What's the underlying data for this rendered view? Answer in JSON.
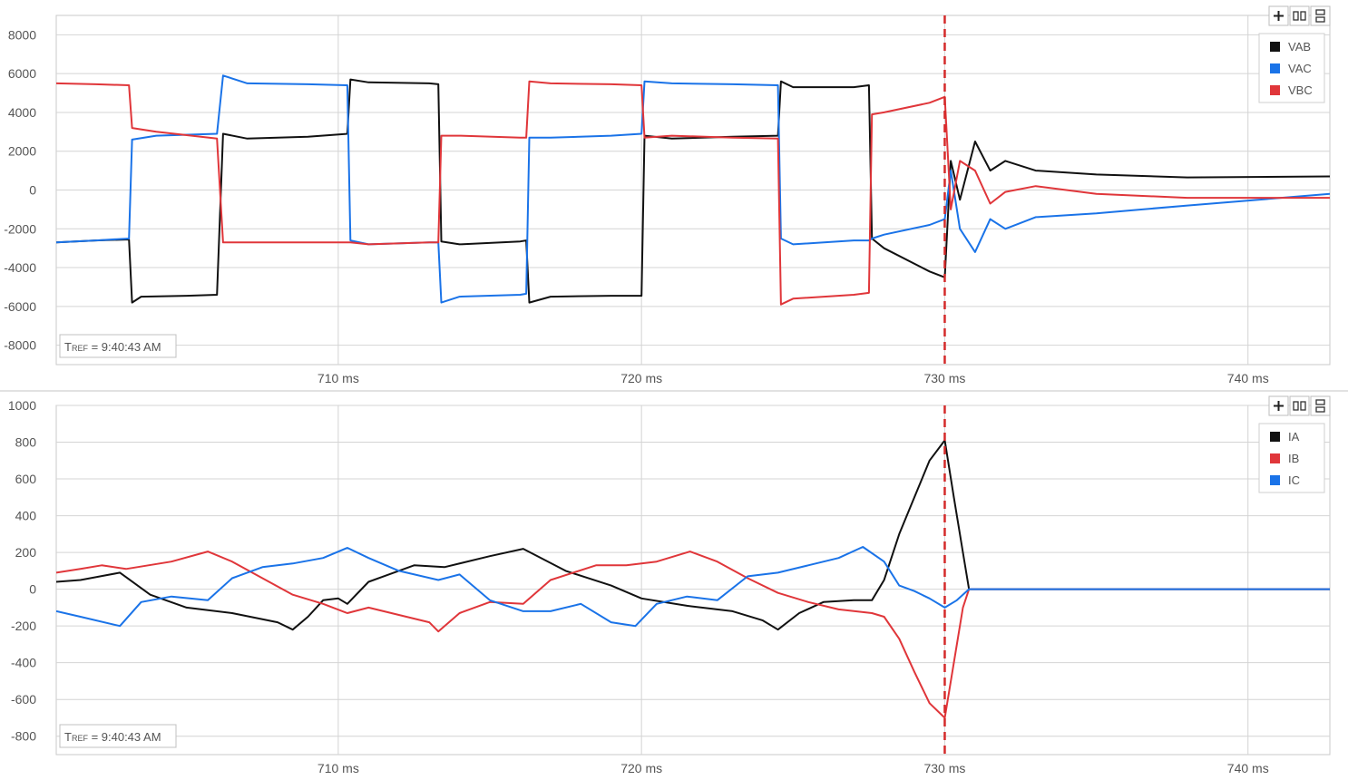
{
  "colors": {
    "black": "#111111",
    "blue": "#1a73e8",
    "red": "#e0363a",
    "grid": "#d4d4d4",
    "cursor": "#d42a2a"
  },
  "toolbar": {
    "add_icon": "plus-icon",
    "columns_icon": "columns-icon",
    "rows_icon": "rows-icon"
  },
  "chart_data": [
    {
      "type": "line",
      "x_unit": "ms",
      "x_range": [
        700.7,
        742.7
      ],
      "x_ticks": [
        710,
        720,
        730,
        740
      ],
      "x_tick_labels": [
        "710 ms",
        "720 ms",
        "730 ms",
        "740 ms"
      ],
      "y_range": [
        -9000,
        9000
      ],
      "y_ticks": [
        8000,
        6000,
        4000,
        2000,
        0,
        -2000,
        -4000,
        -6000,
        -8000
      ],
      "grid": true,
      "legend_position": "top-right",
      "cursor_x": 730,
      "annotation": "TREF = 9:40:43 AM",
      "annotation_parts": {
        "t": "T",
        "ref": "REF",
        "rest": " = 9:40:43 AM"
      },
      "series": [
        {
          "name": "VAB",
          "color": "#111111",
          "points": [
            [
              700.7,
              -2700
            ],
            [
              702.0,
              -2600
            ],
            [
              703.1,
              -2550
            ],
            [
              703.2,
              -5800
            ],
            [
              703.5,
              -5500
            ],
            [
              705.0,
              -5450
            ],
            [
              706.0,
              -5400
            ],
            [
              706.2,
              2900
            ],
            [
              707.0,
              2650
            ],
            [
              709.0,
              2750
            ],
            [
              710.3,
              2900
            ],
            [
              710.4,
              5700
            ],
            [
              711.0,
              5550
            ],
            [
              713.0,
              5500
            ],
            [
              713.3,
              5450
            ],
            [
              713.4,
              -2650
            ],
            [
              714.0,
              -2800
            ],
            [
              716.0,
              -2650
            ],
            [
              716.2,
              -2600
            ],
            [
              716.3,
              -5800
            ],
            [
              717.0,
              -5500
            ],
            [
              719.0,
              -5450
            ],
            [
              720.0,
              -5450
            ],
            [
              720.1,
              2800
            ],
            [
              721.0,
              2650
            ],
            [
              723.0,
              2750
            ],
            [
              724.5,
              2800
            ],
            [
              724.6,
              5600
            ],
            [
              725.0,
              5300
            ],
            [
              727.0,
              5300
            ],
            [
              727.5,
              5400
            ],
            [
              727.6,
              -2500
            ],
            [
              728.0,
              -3000
            ],
            [
              729.5,
              -4200
            ],
            [
              730.0,
              -4500
            ],
            [
              730.2,
              1500
            ],
            [
              730.5,
              -500
            ],
            [
              731.0,
              2500
            ],
            [
              731.5,
              1000
            ],
            [
              732.0,
              1500
            ],
            [
              733.0,
              1000
            ],
            [
              735.0,
              800
            ],
            [
              738.0,
              650
            ],
            [
              742.7,
              700
            ]
          ]
        },
        {
          "name": "VAC",
          "color": "#1a73e8",
          "points": [
            [
              700.7,
              -2700
            ],
            [
              702.0,
              -2600
            ],
            [
              703.1,
              -2500
            ],
            [
              703.2,
              2600
            ],
            [
              704.0,
              2800
            ],
            [
              706.0,
              2900
            ],
            [
              706.2,
              5900
            ],
            [
              707.0,
              5500
            ],
            [
              709.0,
              5450
            ],
            [
              710.3,
              5400
            ],
            [
              710.4,
              -2600
            ],
            [
              711.0,
              -2800
            ],
            [
              713.0,
              -2700
            ],
            [
              713.3,
              -2700
            ],
            [
              713.4,
              -5800
            ],
            [
              714.0,
              -5500
            ],
            [
              716.0,
              -5400
            ],
            [
              716.2,
              -5350
            ],
            [
              716.3,
              2700
            ],
            [
              717.0,
              2700
            ],
            [
              719.0,
              2800
            ],
            [
              720.0,
              2900
            ],
            [
              720.1,
              5600
            ],
            [
              721.0,
              5500
            ],
            [
              723.0,
              5450
            ],
            [
              724.5,
              5400
            ],
            [
              724.6,
              -2500
            ],
            [
              725.0,
              -2800
            ],
            [
              727.0,
              -2600
            ],
            [
              727.5,
              -2600
            ],
            [
              727.6,
              -2500
            ],
            [
              728.0,
              -2300
            ],
            [
              729.5,
              -1800
            ],
            [
              730.0,
              -1500
            ],
            [
              730.2,
              1000
            ],
            [
              730.5,
              -2000
            ],
            [
              731.0,
              -3200
            ],
            [
              731.5,
              -1500
            ],
            [
              732.0,
              -2000
            ],
            [
              733.0,
              -1400
            ],
            [
              735.0,
              -1200
            ],
            [
              738.0,
              -800
            ],
            [
              742.7,
              -200
            ]
          ]
        },
        {
          "name": "VBC",
          "color": "#e0363a",
          "points": [
            [
              700.7,
              5500
            ],
            [
              702.0,
              5450
            ],
            [
              703.1,
              5400
            ],
            [
              703.2,
              3200
            ],
            [
              704.0,
              3000
            ],
            [
              706.0,
              2650
            ],
            [
              706.2,
              -2700
            ],
            [
              707.0,
              -2700
            ],
            [
              709.0,
              -2700
            ],
            [
              710.3,
              -2700
            ],
            [
              710.4,
              -2700
            ],
            [
              711.0,
              -2800
            ],
            [
              713.0,
              -2700
            ],
            [
              713.3,
              -2700
            ],
            [
              713.4,
              2800
            ],
            [
              714.0,
              2800
            ],
            [
              716.0,
              2700
            ],
            [
              716.2,
              2700
            ],
            [
              716.3,
              5600
            ],
            [
              717.0,
              5500
            ],
            [
              719.0,
              5450
            ],
            [
              720.0,
              5400
            ],
            [
              720.1,
              2700
            ],
            [
              721.0,
              2800
            ],
            [
              723.0,
              2700
            ],
            [
              724.5,
              2650
            ],
            [
              724.6,
              -5900
            ],
            [
              725.0,
              -5600
            ],
            [
              727.0,
              -5400
            ],
            [
              727.5,
              -5300
            ],
            [
              727.6,
              3900
            ],
            [
              728.0,
              4000
            ],
            [
              729.5,
              4500
            ],
            [
              730.0,
              4800
            ],
            [
              730.2,
              -1000
            ],
            [
              730.5,
              1500
            ],
            [
              731.0,
              1000
            ],
            [
              731.5,
              -700
            ],
            [
              732.0,
              -100
            ],
            [
              733.0,
              200
            ],
            [
              735.0,
              -200
            ],
            [
              738.0,
              -400
            ],
            [
              742.7,
              -400
            ]
          ]
        }
      ]
    },
    {
      "type": "line",
      "x_unit": "ms",
      "x_range": [
        700.7,
        742.7
      ],
      "x_ticks": [
        710,
        720,
        730,
        740
      ],
      "x_tick_labels": [
        "710 ms",
        "720 ms",
        "730 ms",
        "740 ms"
      ],
      "y_range": [
        -900,
        1000
      ],
      "y_ticks": [
        1000,
        800,
        600,
        400,
        200,
        0,
        -200,
        -400,
        -600,
        -800
      ],
      "grid": true,
      "legend_position": "top-right",
      "cursor_x": 730,
      "annotation": "TREF = 9:40:43 AM",
      "annotation_parts": {
        "t": "T",
        "ref": "REF",
        "rest": " = 9:40:43 AM"
      },
      "series": [
        {
          "name": "IA",
          "color": "#111111",
          "points": [
            [
              700.7,
              40
            ],
            [
              701.5,
              50
            ],
            [
              702.8,
              90
            ],
            [
              703.8,
              -30
            ],
            [
              705.0,
              -100
            ],
            [
              706.5,
              -130
            ],
            [
              708.0,
              -180
            ],
            [
              708.5,
              -220
            ],
            [
              709.0,
              -150
            ],
            [
              709.5,
              -60
            ],
            [
              710.0,
              -50
            ],
            [
              710.3,
              -80
            ],
            [
              711.0,
              40
            ],
            [
              712.5,
              130
            ],
            [
              713.5,
              120
            ],
            [
              715.0,
              180
            ],
            [
              716.1,
              220
            ],
            [
              717.5,
              100
            ],
            [
              719.0,
              20
            ],
            [
              720.0,
              -50
            ],
            [
              721.5,
              -90
            ],
            [
              723.0,
              -120
            ],
            [
              724.0,
              -170
            ],
            [
              724.5,
              -220
            ],
            [
              725.2,
              -130
            ],
            [
              726.0,
              -70
            ],
            [
              727.0,
              -60
            ],
            [
              727.6,
              -60
            ],
            [
              728.0,
              50
            ],
            [
              728.5,
              300
            ],
            [
              729.0,
              500
            ],
            [
              729.5,
              700
            ],
            [
              730.0,
              810
            ],
            [
              730.3,
              500
            ],
            [
              730.6,
              200
            ],
            [
              730.8,
              0
            ],
            [
              742.7,
              0
            ]
          ]
        },
        {
          "name": "IB",
          "color": "#e0363a",
          "points": [
            [
              700.7,
              90
            ],
            [
              701.5,
              110
            ],
            [
              702.2,
              130
            ],
            [
              703.0,
              110
            ],
            [
              704.5,
              150
            ],
            [
              705.7,
              205
            ],
            [
              706.5,
              150
            ],
            [
              707.5,
              60
            ],
            [
              708.5,
              -30
            ],
            [
              709.5,
              -80
            ],
            [
              710.3,
              -130
            ],
            [
              711.0,
              -100
            ],
            [
              712.0,
              -140
            ],
            [
              713.0,
              -180
            ],
            [
              713.3,
              -230
            ],
            [
              714.0,
              -130
            ],
            [
              715.0,
              -70
            ],
            [
              716.1,
              -80
            ],
            [
              717.0,
              50
            ],
            [
              718.5,
              130
            ],
            [
              719.5,
              130
            ],
            [
              720.5,
              150
            ],
            [
              721.6,
              205
            ],
            [
              722.5,
              150
            ],
            [
              723.5,
              60
            ],
            [
              724.5,
              -20
            ],
            [
              725.5,
              -70
            ],
            [
              726.5,
              -110
            ],
            [
              727.6,
              -130
            ],
            [
              728.0,
              -150
            ],
            [
              728.5,
              -270
            ],
            [
              729.0,
              -450
            ],
            [
              729.5,
              -620
            ],
            [
              730.0,
              -700
            ],
            [
              730.3,
              -400
            ],
            [
              730.6,
              -100
            ],
            [
              730.8,
              0
            ],
            [
              742.7,
              0
            ]
          ]
        },
        {
          "name": "IC",
          "color": "#1a73e8",
          "points": [
            [
              700.7,
              -120
            ],
            [
              701.5,
              -150
            ],
            [
              702.8,
              -200
            ],
            [
              703.5,
              -70
            ],
            [
              704.5,
              -40
            ],
            [
              705.7,
              -60
            ],
            [
              706.5,
              60
            ],
            [
              707.5,
              120
            ],
            [
              708.5,
              140
            ],
            [
              709.5,
              170
            ],
            [
              710.3,
              225
            ],
            [
              711.0,
              170
            ],
            [
              712.0,
              100
            ],
            [
              713.3,
              50
            ],
            [
              714.0,
              80
            ],
            [
              715.0,
              -60
            ],
            [
              716.1,
              -120
            ],
            [
              717.0,
              -120
            ],
            [
              718.0,
              -80
            ],
            [
              719.0,
              -180
            ],
            [
              719.8,
              -200
            ],
            [
              720.5,
              -80
            ],
            [
              721.5,
              -40
            ],
            [
              722.5,
              -60
            ],
            [
              723.5,
              70
            ],
            [
              724.5,
              90
            ],
            [
              725.5,
              130
            ],
            [
              726.5,
              170
            ],
            [
              727.3,
              230
            ],
            [
              728.0,
              150
            ],
            [
              728.5,
              20
            ],
            [
              729.0,
              -10
            ],
            [
              729.5,
              -50
            ],
            [
              730.0,
              -100
            ],
            [
              730.4,
              -60
            ],
            [
              730.8,
              0
            ],
            [
              742.7,
              0
            ]
          ]
        }
      ]
    }
  ]
}
